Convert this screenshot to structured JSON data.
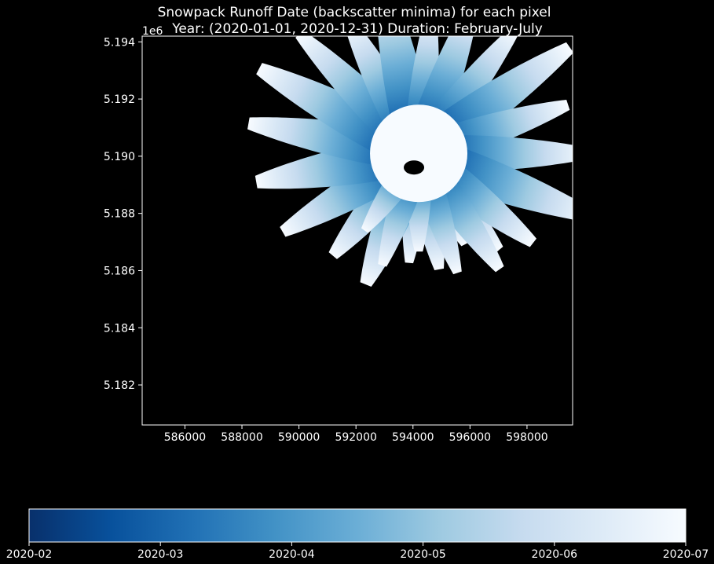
{
  "chart_data": {
    "type": "heatmap",
    "title": "Snowpack Runoff Date (backscatter minima) for each pixel",
    "subtitle": "Year: (2020-01-01, 2020-12-31)  Duration: February-July",
    "x_ticks": [
      "586000",
      "588000",
      "590000",
      "592000",
      "594000",
      "596000",
      "598000"
    ],
    "x_tick_values": [
      586000,
      588000,
      590000,
      592000,
      594000,
      596000,
      598000
    ],
    "xlim": [
      584500,
      599600
    ],
    "y_ticks": [
      "5.182",
      "5.184",
      "5.186",
      "5.188",
      "5.190",
      "5.192",
      "5.194"
    ],
    "y_tick_values": [
      5.182,
      5.184,
      5.186,
      5.188,
      5.19,
      5.192,
      5.194
    ],
    "ylim": [
      5.1806,
      5.1942
    ],
    "y_offset_label": "1e6",
    "center": {
      "x": 594200,
      "y": 5.1901
    },
    "colorbar": {
      "colormap": "Blues_r",
      "orientation": "horizontal",
      "tick_labels": [
        "2020-02",
        "2020-03",
        "2020-04",
        "2020-05",
        "2020-06",
        "2020-07"
      ],
      "colors": [
        "#08306b",
        "#08519c",
        "#2171b5",
        "#4292c6",
        "#6baed6",
        "#9ecae1",
        "#c6dbef",
        "#deebf7",
        "#f7fbff"
      ]
    },
    "background": "#000000",
    "no_data_color": "#000000",
    "grid": false
  }
}
